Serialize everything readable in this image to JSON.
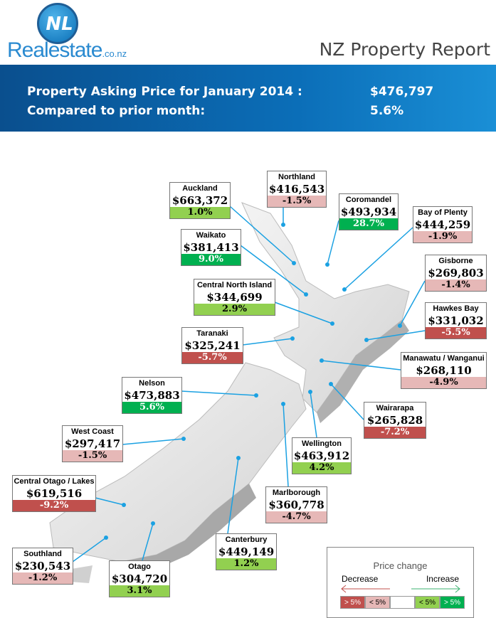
{
  "header": {
    "logo_text": "Realestate",
    "logo_suffix": ".co.nz",
    "logo_mark": "NL",
    "report_title": "NZ Property Report"
  },
  "summary": {
    "asking_label": "Property Asking Price for January 2014 :",
    "asking_value": "$476,797",
    "compared_label": "Compared to prior month:",
    "compared_value": "5.6%"
  },
  "colors": {
    "dec_big": "#c0504d",
    "dec_small": "#e6b8b7",
    "inc_small": "#92d050",
    "inc_big": "#00b050"
  },
  "regions": [
    {
      "name": "Auckland",
      "price": "$663,372",
      "change": "1.0%",
      "cat": "inc_small"
    },
    {
      "name": "Northland",
      "price": "$416,543",
      "change": "-1.5%",
      "cat": "dec_small"
    },
    {
      "name": "Coromandel",
      "price": "$493,934",
      "change": "28.7%",
      "cat": "inc_big"
    },
    {
      "name": "Bay of Plenty",
      "price": "$444,259",
      "change": "-1.9%",
      "cat": "dec_small"
    },
    {
      "name": "Waikato",
      "price": "$381,413",
      "change": "9.0%",
      "cat": "inc_big"
    },
    {
      "name": "Gisborne",
      "price": "$269,803",
      "change": "-1.4%",
      "cat": "dec_small"
    },
    {
      "name": "Central North Island",
      "price": "$344,699",
      "change": "2.9%",
      "cat": "inc_small"
    },
    {
      "name": "Hawkes Bay",
      "price": "$331,032",
      "change": "-5.5%",
      "cat": "dec_big"
    },
    {
      "name": "Taranaki",
      "price": "$325,241",
      "change": "-5.7%",
      "cat": "dec_big"
    },
    {
      "name": "Manawatu / Wanganui",
      "price": "$268,110",
      "change": "-4.9%",
      "cat": "dec_small"
    },
    {
      "name": "Nelson",
      "price": "$473,883",
      "change": "5.6%",
      "cat": "inc_big"
    },
    {
      "name": "Wairarapa",
      "price": "$265,828",
      "change": "-7.2%",
      "cat": "dec_big"
    },
    {
      "name": "Wellington",
      "price": "$463,912",
      "change": "4.2%",
      "cat": "inc_small"
    },
    {
      "name": "West Coast",
      "price": "$297,417",
      "change": "-1.5%",
      "cat": "dec_small"
    },
    {
      "name": "Central Otago / Lakes",
      "price": "$619,516",
      "change": "-9.2%",
      "cat": "dec_big"
    },
    {
      "name": "Marlborough",
      "price": "$360,778",
      "change": "-4.7%",
      "cat": "dec_small"
    },
    {
      "name": "Canterbury",
      "price": "$449,149",
      "change": "1.2%",
      "cat": "inc_small"
    },
    {
      "name": "Southland",
      "price": "$230,543",
      "change": "-1.2%",
      "cat": "dec_small"
    },
    {
      "name": "Otago",
      "price": "$304,720",
      "change": "3.1%",
      "cat": "inc_small"
    }
  ],
  "legend": {
    "title": "Price change",
    "decrease": "Decrease",
    "increase": "Increase",
    "swatches": [
      "> 5%",
      "< 5%",
      "",
      "< 5%",
      "> 5%"
    ]
  }
}
